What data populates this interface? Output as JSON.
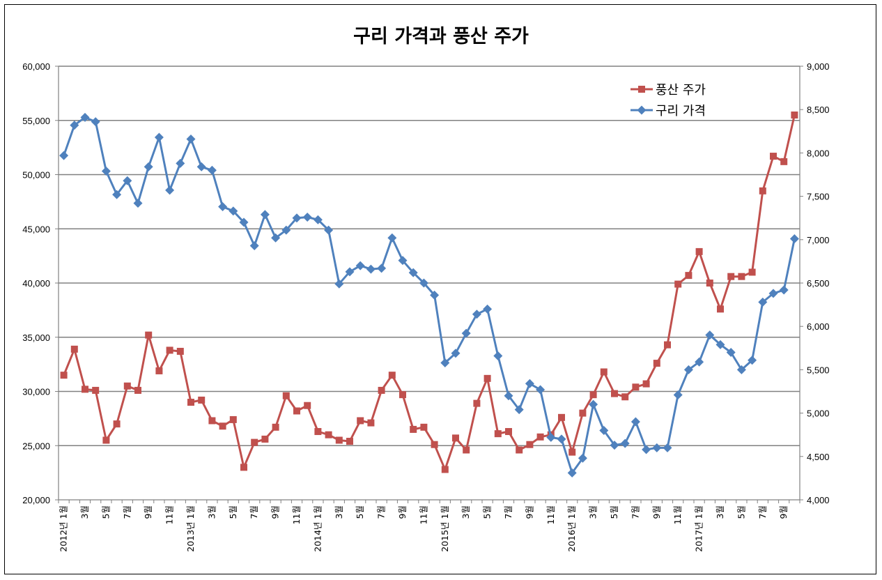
{
  "chart_data": {
    "type": "line",
    "title": "구리 가격과 풍산 주가",
    "legend_position": "top-right",
    "grid": true,
    "colors": {
      "poongsan": "#c0504d",
      "copper": "#4f81bd",
      "grid": "#808080"
    },
    "y_left": {
      "min": 20000,
      "max": 60000,
      "step": 5000,
      "tick_labels": [
        "20,000",
        "25,000",
        "30,000",
        "35,000",
        "40,000",
        "45,000",
        "50,000",
        "55,000",
        "60,000"
      ]
    },
    "y_right": {
      "min": 4000,
      "max": 9000,
      "step": 500,
      "tick_labels": [
        "4,000",
        "4,500",
        "5,000",
        "5,500",
        "6,000",
        "6,500",
        "7,000",
        "7,500",
        "8,000",
        "8,500",
        "9,000"
      ]
    },
    "x_tick_labels": [
      "2012년 1월",
      "3월",
      "5월",
      "7월",
      "9월",
      "11월",
      "2013년 1월",
      "3월",
      "5월",
      "7월",
      "9월",
      "11월",
      "2014년 1월",
      "3월",
      "5월",
      "7월",
      "9월",
      "11월",
      "2015년 1월",
      "3월",
      "5월",
      "7월",
      "9월",
      "11월",
      "2016년 1월",
      "3월",
      "5월",
      "7월",
      "9월",
      "11월",
      "2017년 1월",
      "3월",
      "5월",
      "7월",
      "9월"
    ],
    "series": [
      {
        "name": "풍산 주가",
        "axis": "left",
        "marker": "square",
        "values": [
          31500,
          33900,
          30200,
          30100,
          25500,
          27000,
          30500,
          30100,
          35200,
          31900,
          33800,
          33700,
          29000,
          29200,
          27300,
          26800,
          27400,
          23000,
          25300,
          25600,
          26700,
          29600,
          28200,
          28700,
          26300,
          26000,
          25500,
          25400,
          27300,
          27100,
          30100,
          31500,
          29700,
          26500,
          26700,
          25100,
          22800,
          25700,
          24600,
          28900,
          31200,
          26100,
          26300,
          24600,
          25100,
          25800,
          26000,
          27600,
          24400,
          28000,
          29700,
          31800,
          29800,
          29500,
          30400,
          30700,
          32600,
          34300,
          39900,
          40700,
          42900,
          40000,
          37600,
          40600,
          40600,
          41000,
          48500,
          51700,
          51200,
          55500
        ]
      },
      {
        "name": "구리 가격",
        "axis": "right",
        "marker": "diamond",
        "values": [
          7970,
          8320,
          8410,
          8360,
          7790,
          7520,
          7680,
          7420,
          7840,
          8180,
          7570,
          7880,
          8160,
          7840,
          7800,
          7380,
          7330,
          7200,
          6930,
          7290,
          7020,
          7110,
          7250,
          7260,
          7230,
          7110,
          6490,
          6630,
          6700,
          6660,
          6670,
          7020,
          6760,
          6620,
          6500,
          6360,
          5580,
          5690,
          5920,
          6140,
          6200,
          5660,
          5200,
          5040,
          5340,
          5270,
          4720,
          4700,
          4310,
          4480,
          5100,
          4800,
          4630,
          4650,
          4900,
          4580,
          4600,
          4600,
          5210,
          5500,
          5590,
          5900,
          5790,
          5700,
          5500,
          5610,
          6280,
          6380,
          6420,
          7010
        ]
      }
    ]
  }
}
